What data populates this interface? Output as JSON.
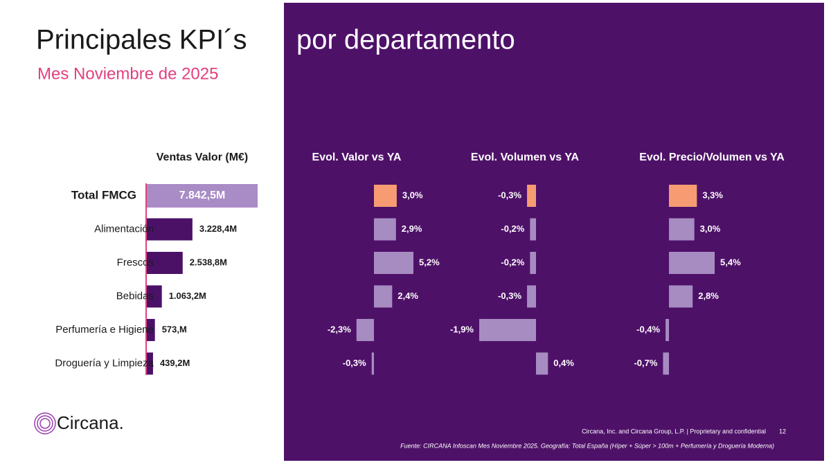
{
  "header": {
    "title": "Principales KPI´s",
    "title_right": "por departamento",
    "subtitle": "Mes Noviembre de 2025"
  },
  "chart_data": [
    {
      "type": "bar",
      "orientation": "horizontal",
      "title": "Ventas Valor (M€)",
      "categories": [
        "Total FMCG",
        "Alimentación",
        "Frescos",
        "Bebidas",
        "Perfumería e Higiene",
        "Droguería y Limpieza"
      ],
      "values": [
        7842.5,
        3228.4,
        2538.8,
        1063.2,
        573,
        439.2
      ],
      "value_labels": [
        "7.842,5M",
        "3.228,4M",
        "2.538,8M",
        "1.063,2M",
        "573,M",
        "439,2M"
      ],
      "colors": [
        "#a98bc6",
        "#4b1167",
        "#4b1167",
        "#4b1167",
        "#4b1167",
        "#4b1167"
      ]
    },
    {
      "type": "bar",
      "orientation": "horizontal",
      "title": "Evol. Valor vs YA",
      "values": [
        3.0,
        2.9,
        5.2,
        2.4,
        -2.3,
        -0.3
      ],
      "value_labels": [
        "3,0%",
        "2,9%",
        "5,2%",
        "2,4%",
        "-2,3%",
        "-0,3%"
      ],
      "colors": [
        "#f79c72",
        "#a78cc2",
        "#a78cc2",
        "#a78cc2",
        "#a78cc2",
        "#a78cc2"
      ]
    },
    {
      "type": "bar",
      "orientation": "horizontal",
      "title": "Evol. Volumen vs YA",
      "values": [
        -0.3,
        -0.2,
        -0.2,
        -0.3,
        -1.9,
        0.4
      ],
      "value_labels": [
        "-0,3%",
        "-0,2%",
        "-0,2%",
        "-0,3%",
        "-1,9%",
        "0,4%"
      ],
      "colors": [
        "#f79c72",
        "#a78cc2",
        "#a78cc2",
        "#a78cc2",
        "#a78cc2",
        "#a78cc2"
      ]
    },
    {
      "type": "bar",
      "orientation": "horizontal",
      "title": "Evol. Precio/Volumen vs YA",
      "values": [
        3.3,
        3.0,
        5.4,
        2.8,
        -0.4,
        -0.7
      ],
      "value_labels": [
        "3,3%",
        "3,0%",
        "5,4%",
        "2,8%",
        "-0,4%",
        "-0,7%"
      ],
      "colors": [
        "#f79c72",
        "#a78cc2",
        "#a78cc2",
        "#a78cc2",
        "#a78cc2",
        "#a78cc2"
      ]
    }
  ],
  "footer": {
    "logo": "Circana.",
    "legal": "Circana, Inc. and Circana Group, L.P. |  Proprietary and confidential",
    "page": "12",
    "source": "Fuente: CIRCANA Infoscan Mes Noviembre 2025. Geografía: Total España (Híper + Súper > 100m + Perfumería y Droguería Moderna)"
  }
}
